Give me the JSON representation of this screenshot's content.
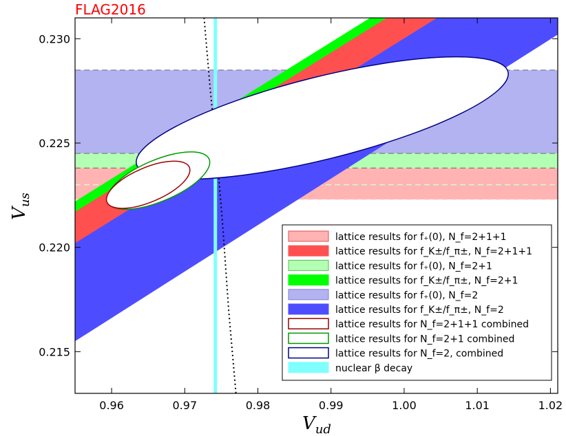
{
  "chart_data": {
    "type": "region",
    "watermark": "FLAG2016",
    "xlabel": "V_ud",
    "ylabel": "V_us",
    "xlim": [
      0.955,
      1.021
    ],
    "ylim": [
      0.213,
      0.231
    ],
    "xticks": [
      0.96,
      0.97,
      0.98,
      0.99,
      1.0,
      1.01,
      1.02
    ],
    "yticks": [
      0.215,
      0.22,
      0.225,
      0.23
    ],
    "horizontal_bands": [
      {
        "name": "f+(0) Nf=2 bands",
        "y_min": 0.2245,
        "y_max": 0.2285,
        "color": "#b3b3f2",
        "edge": "#666699"
      },
      {
        "name": "f+(0) Nf=2+1 band",
        "y_min": 0.2238,
        "y_max": 0.2245,
        "color": "#b3ffb3",
        "edge": "#669966"
      },
      {
        "name": "f+(0) Nf=2+1+1 band",
        "y_min": 0.2223,
        "y_max": 0.2238,
        "color": "#ffb3b3",
        "edge": "#996666"
      }
    ],
    "center_lines": [
      {
        "y": 0.223,
        "color": "#ccffcc"
      },
      {
        "y": 0.2223,
        "color": "#ffcccc"
      }
    ],
    "diagonal_bands": [
      {
        "name": "fK/fpi Nf=2",
        "color": "#4d4dff",
        "lower": [
          [
            0.955,
            0.2155
          ],
          [
            1.021,
            0.2302
          ]
        ],
        "upper": [
          [
            0.955,
            0.221
          ],
          [
            1.021,
            0.2357
          ]
        ]
      },
      {
        "name": "fK/fpi Nf=2+1",
        "color": "#00ff00",
        "lower": [
          [
            0.955,
            0.2213
          ],
          [
            1.021,
            0.2357
          ]
        ],
        "upper": [
          [
            0.955,
            0.2222
          ],
          [
            1.021,
            0.2366
          ]
        ]
      },
      {
        "name": "fK/fpi Nf=2+1+1",
        "color": "#ff5050",
        "lower": [
          [
            0.955,
            0.2202
          ],
          [
            1.021,
            0.2346
          ]
        ],
        "upper": [
          [
            0.955,
            0.2217
          ],
          [
            1.021,
            0.2361
          ]
        ]
      }
    ],
    "ellipses": [
      {
        "name": "Nf=2 combined",
        "cx": 0.9888,
        "cy": 0.2262,
        "rx_px": 278,
        "ry_px": 60,
        "angle_deg": -14,
        "stroke": "#000080"
      },
      {
        "name": "Nf=2+1 combined",
        "cx": 0.9664,
        "cy": 0.2232,
        "rx_px": 80,
        "ry_px": 30,
        "angle_deg": -23,
        "stroke": "#009900"
      },
      {
        "name": "Nf=2+1+1 combined",
        "cx": 0.965,
        "cy": 0.223,
        "rx_px": 65,
        "ry_px": 25,
        "angle_deg": -23,
        "stroke": "#990000"
      }
    ],
    "vertical_band": {
      "name": "nuclear beta decay",
      "x_min": 0.97395,
      "x_max": 0.9744,
      "color": "#80ffff"
    },
    "unitarity_curve": [
      [
        0.9725,
        0.2316
      ],
      [
        0.9735,
        0.2275
      ],
      [
        0.9745,
        0.224
      ],
      [
        0.9752,
        0.221
      ],
      [
        0.976,
        0.217
      ],
      [
        0.977,
        0.213
      ]
    ],
    "legend": {
      "placement": "lower-right",
      "entries": [
        {
          "label": "lattice results for f₊(0), N_f=2+1+1",
          "style": "fill",
          "color": "#ffb3b3",
          "edge": "#e05050"
        },
        {
          "label": "lattice results for f_K±/f_π±, N_f=2+1+1",
          "style": "fill",
          "color": "#ff5050",
          "edge": "#ff5050"
        },
        {
          "label": "lattice results for f₊(0), N_f=2+1",
          "style": "fill",
          "color": "#b3ffb3",
          "edge": "#50c050"
        },
        {
          "label": "lattice results for f_K±/f_π±, N_f=2+1",
          "style": "fill",
          "color": "#00ff00",
          "edge": "#00ff00"
        },
        {
          "label": "lattice results for f₊(0), N_f=2",
          "style": "fill",
          "color": "#b3b3f2",
          "edge": "#8080d0"
        },
        {
          "label": "lattice results for f_K±/f_π±, N_f=2",
          "style": "fill",
          "color": "#4d4dff",
          "edge": "#4d4dff"
        },
        {
          "label": "lattice results for N_f=2+1+1 combined",
          "style": "outline",
          "color": "#ffffff",
          "edge": "#990000"
        },
        {
          "label": "lattice results for N_f=2+1 combined",
          "style": "outline",
          "color": "#ffffff",
          "edge": "#009900"
        },
        {
          "label": "lattice results for N_f=2, combined",
          "style": "outline",
          "color": "#ffffff",
          "edge": "#000080"
        },
        {
          "label": "nuclear β decay",
          "style": "fill",
          "color": "#80ffff",
          "edge": "#80ffff"
        }
      ]
    }
  }
}
